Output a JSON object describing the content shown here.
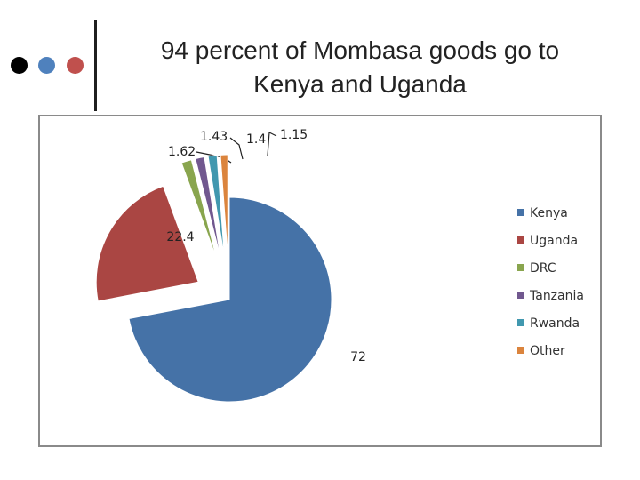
{
  "slide": {
    "title_line1": "94 percent of Mombasa goods go to",
    "title_line2": "Kenya and Uganda",
    "decor_colors": [
      "#000000",
      "#4f81bd",
      "#c0504d"
    ]
  },
  "chart_data": {
    "type": "pie",
    "exploded": true,
    "legend_position": "right",
    "categories": [
      "Kenya",
      "Uganda",
      "DRC",
      "Tanzania",
      "Rwanda",
      "Other"
    ],
    "values": [
      72,
      22.4,
      1.62,
      1.43,
      1.4,
      1.15
    ],
    "value_labels": [
      "72",
      "22.4",
      "1.62",
      "1.43",
      "1.4",
      "1.15"
    ],
    "colors": [
      "#4572a7",
      "#aa4643",
      "#89a54e",
      "#71588f",
      "#4198af",
      "#db843d"
    ]
  }
}
